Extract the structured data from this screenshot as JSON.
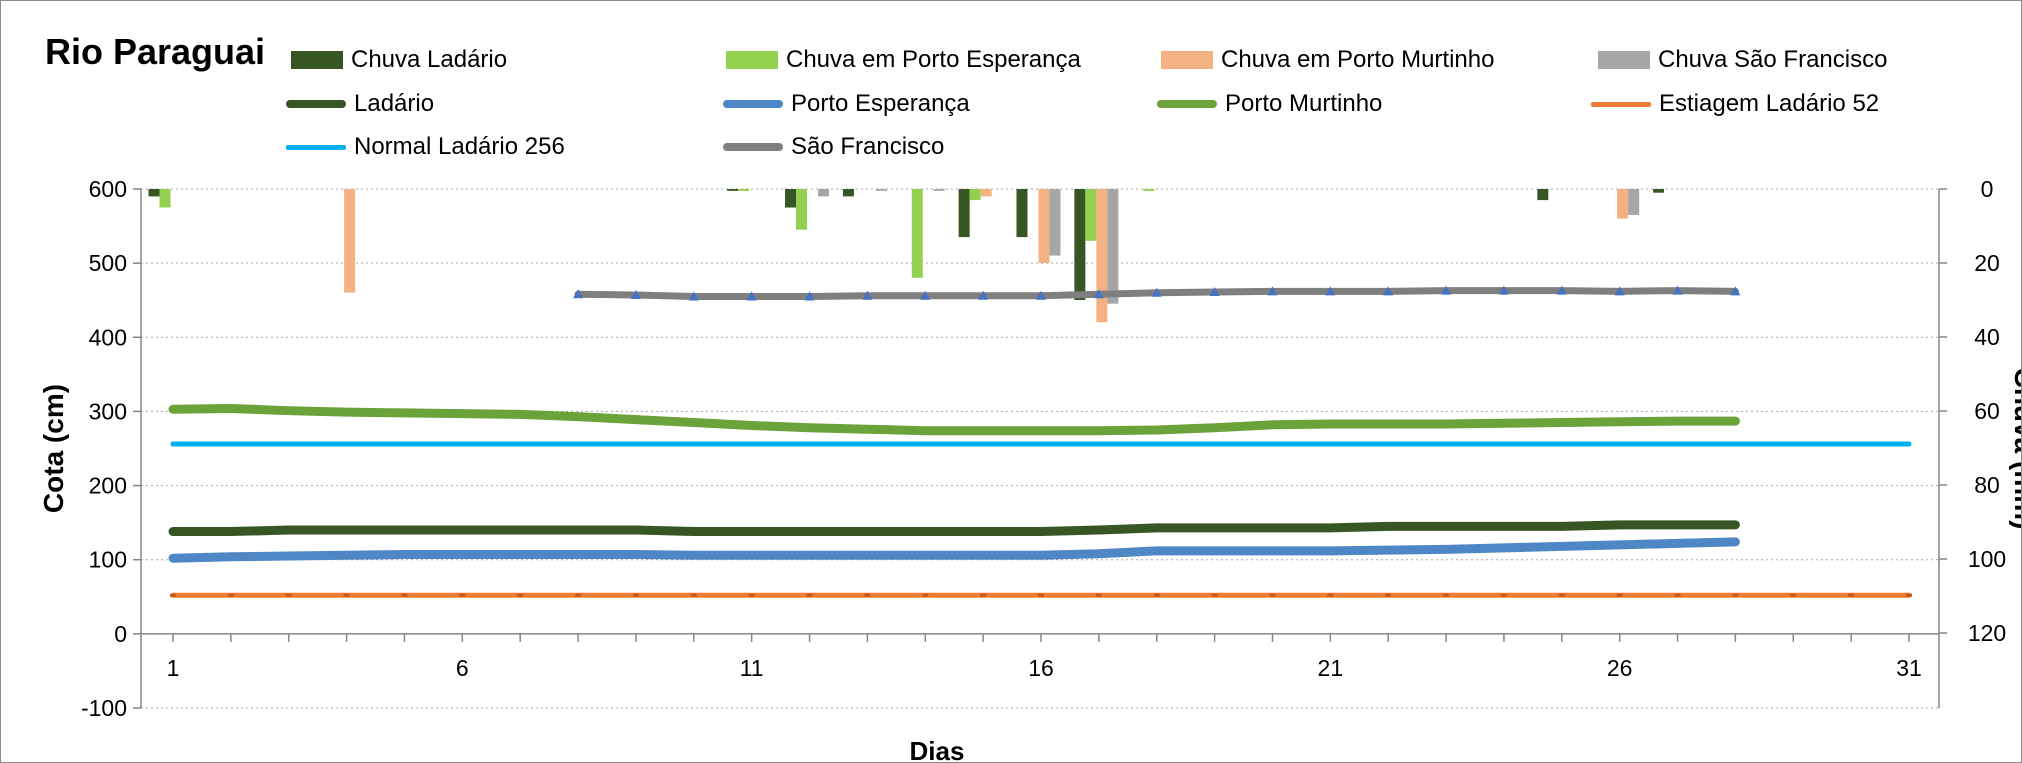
{
  "chart_data": {
    "type": "bar+line",
    "title": "Rio Paraguai",
    "xlabel": "Dias",
    "ylabel_left": "Cota  (cm)",
    "ylabel_right": "Chuva (mm)",
    "x_ticks": [
      1,
      6,
      11,
      16,
      21,
      26,
      31
    ],
    "ylim_left": [
      -100,
      600
    ],
    "yticks_left": [
      -100,
      0,
      100,
      200,
      300,
      400,
      500,
      600
    ],
    "ylim_right": [
      0,
      120
    ],
    "yticks_right": [
      0,
      20,
      40,
      60,
      80,
      100,
      120
    ],
    "right_axis_inverted": true,
    "grid": true,
    "rain_series": [
      {
        "name": "Chuva Ladário",
        "color": "#375623",
        "values": [
          2,
          0,
          0,
          0,
          0,
          0,
          0,
          0,
          0,
          0,
          0.5,
          5,
          2,
          0,
          13,
          13,
          30,
          0,
          0,
          0,
          0,
          0,
          0,
          0,
          3,
          0,
          1,
          0,
          0,
          0,
          0
        ]
      },
      {
        "name": "Chuva em Porto Esperança",
        "color": "#92d050",
        "values": [
          5,
          0,
          0,
          0,
          0,
          0,
          0,
          0,
          0,
          0,
          0.5,
          11,
          0,
          24,
          3,
          0,
          14,
          0.5,
          0,
          0,
          0,
          0,
          0,
          0,
          0,
          0,
          0,
          0,
          0,
          0,
          0
        ]
      },
      {
        "name": "Chuva em Porto Murtinho",
        "color": "#f4b183",
        "values": [
          0,
          0,
          0,
          28,
          0,
          0,
          0,
          0,
          0,
          0,
          0,
          0,
          0,
          0,
          2,
          20,
          36,
          0,
          0,
          0,
          0,
          0,
          0,
          0,
          0,
          8,
          0,
          0,
          0,
          0,
          0
        ]
      },
      {
        "name": "Chuva São Francisco",
        "color": "#a6a6a6",
        "values": [
          0,
          0,
          0,
          0,
          0,
          0,
          0,
          0,
          0,
          0,
          0,
          2,
          0.5,
          0.5,
          0,
          18,
          31,
          0,
          0,
          0,
          0,
          0,
          0,
          0,
          0,
          7,
          0,
          0,
          0,
          0,
          0
        ]
      }
    ],
    "level_series": [
      {
        "name": "Ladário",
        "color": "#375623",
        "width": 9,
        "values": [
          138,
          138,
          140,
          140,
          140,
          140,
          140,
          140,
          140,
          138,
          138,
          138,
          138,
          138,
          138,
          138,
          140,
          143,
          143,
          143,
          143,
          145,
          145,
          145,
          145,
          147,
          147,
          147
        ]
      },
      {
        "name": "Porto Esperança",
        "color": "#4e86c6",
        "width": 9,
        "values": [
          102,
          104,
          105,
          106,
          107,
          107,
          107,
          107,
          107,
          106,
          106,
          106,
          106,
          106,
          106,
          106,
          108,
          112,
          112,
          112,
          112,
          113,
          114,
          116,
          118,
          120,
          122,
          124
        ]
      },
      {
        "name": "Porto Murtinho",
        "color": "#6aa339",
        "width": 9,
        "values": [
          303,
          304,
          301,
          299,
          298,
          297,
          296,
          293,
          289,
          285,
          281,
          278,
          276,
          274,
          274,
          274,
          274,
          275,
          278,
          282,
          283,
          283,
          283,
          284,
          285,
          286,
          287,
          287
        ]
      },
      {
        "name": "Estiagem Ladário 52",
        "color": "#ed7d31",
        "width": 5,
        "markers": true,
        "x_end": 31,
        "constant": 52
      },
      {
        "name": "Normal Ladário 256",
        "color": "#00b0f0",
        "width": 5,
        "x_end": 31,
        "constant": 256
      },
      {
        "name": "São Francisco",
        "color": "#7f7f7f",
        "width": 7,
        "markers": true,
        "x_start": 8,
        "values": [
          458,
          457,
          455,
          455,
          455,
          456,
          456,
          456,
          456,
          458,
          460,
          461,
          462,
          462,
          462,
          463,
          463,
          463,
          462,
          463,
          462
        ]
      }
    ]
  }
}
